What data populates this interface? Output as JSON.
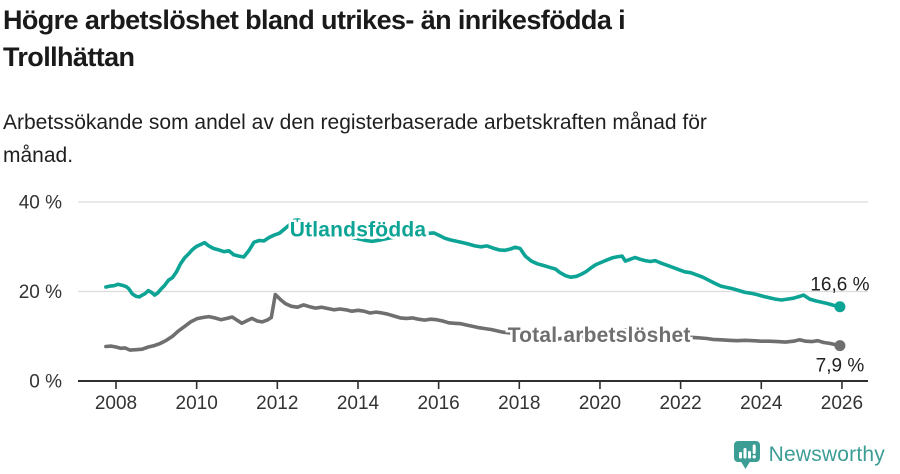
{
  "header": {
    "title_line1": "Högre arbetslöshet bland utrikes- än inrikesfödda i",
    "title_line2": "Trollhättan",
    "subtitle_line1": "Arbetssökande som andel av den registerbaserade arbetskraften månad för",
    "subtitle_line2": "månad."
  },
  "footer": {
    "brand": "Newsworthy",
    "logo_icon": "bar-chart-speech-bubble"
  },
  "colors": {
    "foreign_born_line": "#0da496",
    "total_line": "#6f6f6f",
    "grid": "#dcdcdc",
    "axis": "#2f2f2f",
    "tick_text": "#333333",
    "end_label_text": "#222222",
    "logo_teal": "#3c9d95"
  },
  "chart_data": {
    "type": "line",
    "title": "Högre arbetslöshet bland utrikes- än inrikesfödda i Trollhättan",
    "subtitle": "Arbetssökande som andel av den registerbaserade arbetskraften månad för månad.",
    "xlabel": "",
    "ylabel": "",
    "grid": "horizontal-only",
    "legend_position": "inline-labels",
    "ylim": [
      0,
      42
    ],
    "xlim": [
      2007.6,
      2026.7
    ],
    "yticks": [
      {
        "value": 0,
        "label": "0 %"
      },
      {
        "value": 20,
        "label": "20 %"
      },
      {
        "value": 40,
        "label": "40 %"
      }
    ],
    "xticks": [
      {
        "value": 2008,
        "label": "2008"
      },
      {
        "value": 2010,
        "label": "2010"
      },
      {
        "value": 2012,
        "label": "2012"
      },
      {
        "value": 2014,
        "label": "2014"
      },
      {
        "value": 2016,
        "label": "2016"
      },
      {
        "value": 2018,
        "label": "2018"
      },
      {
        "value": 2020,
        "label": "2020"
      },
      {
        "value": 2022,
        "label": "2022"
      },
      {
        "value": 2024,
        "label": "2024"
      },
      {
        "value": 2026,
        "label": "2026"
      }
    ],
    "annotations": [
      {
        "text": "Utlandsfödda",
        "year": 2014.0,
        "value": 33.9,
        "color": "#0da496"
      },
      {
        "text": "Total arbetslöshet",
        "year": 2019.98,
        "value": 10.3,
        "color": "#6f6f6f"
      }
    ],
    "series": [
      {
        "name": "Utlandsfödda",
        "color": "#0da496",
        "end_value": 16.6,
        "end_label": "16,6 %",
        "end_label_position": "above",
        "points": [
          [
            2007.75,
            21.0
          ],
          [
            2007.85,
            21.2
          ],
          [
            2007.95,
            21.3
          ],
          [
            2008.05,
            21.6
          ],
          [
            2008.15,
            21.4
          ],
          [
            2008.25,
            21.1
          ],
          [
            2008.32,
            20.6
          ],
          [
            2008.4,
            19.5
          ],
          [
            2008.5,
            18.9
          ],
          [
            2008.58,
            18.8
          ],
          [
            2008.65,
            19.2
          ],
          [
            2008.72,
            19.5
          ],
          [
            2008.8,
            20.2
          ],
          [
            2008.88,
            19.8
          ],
          [
            2008.96,
            19.2
          ],
          [
            2009.04,
            19.7
          ],
          [
            2009.12,
            20.6
          ],
          [
            2009.2,
            21.3
          ],
          [
            2009.3,
            22.5
          ],
          [
            2009.4,
            23.1
          ],
          [
            2009.5,
            24.4
          ],
          [
            2009.6,
            26.2
          ],
          [
            2009.7,
            27.5
          ],
          [
            2009.8,
            28.4
          ],
          [
            2009.9,
            29.4
          ],
          [
            2010.0,
            30.1
          ],
          [
            2010.1,
            30.5
          ],
          [
            2010.2,
            30.9
          ],
          [
            2010.3,
            30.2
          ],
          [
            2010.42,
            29.6
          ],
          [
            2010.55,
            29.3
          ],
          [
            2010.68,
            28.9
          ],
          [
            2010.8,
            29.1
          ],
          [
            2010.92,
            28.2
          ],
          [
            2011.05,
            27.9
          ],
          [
            2011.17,
            27.7
          ],
          [
            2011.3,
            29.2
          ],
          [
            2011.42,
            31.0
          ],
          [
            2011.55,
            31.4
          ],
          [
            2011.67,
            31.3
          ],
          [
            2011.8,
            32.1
          ],
          [
            2011.92,
            32.6
          ],
          [
            2012.05,
            33.0
          ],
          [
            2012.17,
            33.9
          ],
          [
            2012.3,
            34.9
          ],
          [
            2012.42,
            35.9
          ],
          [
            2012.52,
            36.0
          ],
          [
            2012.65,
            35.4
          ],
          [
            2012.8,
            35.0
          ],
          [
            2013.0,
            34.5
          ],
          [
            2013.2,
            34.0
          ],
          [
            2013.4,
            33.4
          ],
          [
            2013.6,
            32.8
          ],
          [
            2013.8,
            32.2
          ],
          [
            2014.0,
            31.8
          ],
          [
            2014.2,
            31.4
          ],
          [
            2014.35,
            31.2
          ],
          [
            2014.55,
            31.5
          ],
          [
            2014.75,
            31.9
          ],
          [
            2014.95,
            32.2
          ],
          [
            2015.15,
            32.5
          ],
          [
            2015.35,
            32.7
          ],
          [
            2015.55,
            32.9
          ],
          [
            2015.75,
            33.0
          ],
          [
            2015.88,
            33.1
          ],
          [
            2016.0,
            32.6
          ],
          [
            2016.15,
            31.9
          ],
          [
            2016.3,
            31.5
          ],
          [
            2016.5,
            31.1
          ],
          [
            2016.7,
            30.7
          ],
          [
            2016.9,
            30.2
          ],
          [
            2017.05,
            30.0
          ],
          [
            2017.2,
            30.2
          ],
          [
            2017.35,
            29.7
          ],
          [
            2017.5,
            29.3
          ],
          [
            2017.65,
            29.2
          ],
          [
            2017.78,
            29.5
          ],
          [
            2017.9,
            29.9
          ],
          [
            2018.02,
            29.6
          ],
          [
            2018.15,
            27.9
          ],
          [
            2018.3,
            26.8
          ],
          [
            2018.45,
            26.2
          ],
          [
            2018.6,
            25.8
          ],
          [
            2018.75,
            25.4
          ],
          [
            2018.9,
            25.0
          ],
          [
            2019.0,
            24.3
          ],
          [
            2019.15,
            23.5
          ],
          [
            2019.28,
            23.2
          ],
          [
            2019.42,
            23.4
          ],
          [
            2019.55,
            23.9
          ],
          [
            2019.65,
            24.4
          ],
          [
            2019.78,
            25.3
          ],
          [
            2019.9,
            26.0
          ],
          [
            2020.03,
            26.5
          ],
          [
            2020.16,
            27.0
          ],
          [
            2020.3,
            27.5
          ],
          [
            2020.45,
            27.8
          ],
          [
            2020.55,
            27.9
          ],
          [
            2020.63,
            26.8
          ],
          [
            2020.75,
            27.2
          ],
          [
            2020.87,
            27.6
          ],
          [
            2021.0,
            27.2
          ],
          [
            2021.12,
            26.9
          ],
          [
            2021.25,
            26.7
          ],
          [
            2021.37,
            26.9
          ],
          [
            2021.5,
            26.4
          ],
          [
            2021.65,
            25.9
          ],
          [
            2021.8,
            25.4
          ],
          [
            2021.95,
            24.9
          ],
          [
            2022.1,
            24.4
          ],
          [
            2022.25,
            24.2
          ],
          [
            2022.4,
            23.7
          ],
          [
            2022.55,
            23.2
          ],
          [
            2022.7,
            22.5
          ],
          [
            2022.85,
            21.8
          ],
          [
            2023.0,
            21.2
          ],
          [
            2023.15,
            20.9
          ],
          [
            2023.3,
            20.6
          ],
          [
            2023.45,
            20.2
          ],
          [
            2023.6,
            19.8
          ],
          [
            2023.75,
            19.6
          ],
          [
            2023.9,
            19.3
          ],
          [
            2024.05,
            18.9
          ],
          [
            2024.2,
            18.6
          ],
          [
            2024.35,
            18.3
          ],
          [
            2024.5,
            18.1
          ],
          [
            2024.65,
            18.3
          ],
          [
            2024.8,
            18.5
          ],
          [
            2024.95,
            18.9
          ],
          [
            2025.05,
            19.2
          ],
          [
            2025.2,
            18.3
          ],
          [
            2025.35,
            17.9
          ],
          [
            2025.5,
            17.6
          ],
          [
            2025.65,
            17.3
          ],
          [
            2025.8,
            16.9
          ],
          [
            2025.95,
            16.6
          ]
        ]
      },
      {
        "name": "Total arbetslöshet",
        "color": "#6f6f6f",
        "end_value": 7.9,
        "end_label": "7,9 %",
        "end_label_position": "below",
        "points": [
          [
            2007.75,
            7.7
          ],
          [
            2007.88,
            7.8
          ],
          [
            2008.0,
            7.6
          ],
          [
            2008.12,
            7.3
          ],
          [
            2008.22,
            7.4
          ],
          [
            2008.35,
            6.9
          ],
          [
            2008.5,
            7.0
          ],
          [
            2008.65,
            7.1
          ],
          [
            2008.8,
            7.6
          ],
          [
            2008.95,
            7.9
          ],
          [
            2009.1,
            8.4
          ],
          [
            2009.25,
            9.1
          ],
          [
            2009.4,
            10.0
          ],
          [
            2009.55,
            11.2
          ],
          [
            2009.7,
            12.2
          ],
          [
            2009.85,
            13.2
          ],
          [
            2010.0,
            13.9
          ],
          [
            2010.15,
            14.2
          ],
          [
            2010.3,
            14.4
          ],
          [
            2010.45,
            14.1
          ],
          [
            2010.6,
            13.7
          ],
          [
            2010.75,
            14.0
          ],
          [
            2010.88,
            14.3
          ],
          [
            2011.0,
            13.6
          ],
          [
            2011.12,
            12.9
          ],
          [
            2011.25,
            13.5
          ],
          [
            2011.37,
            14.0
          ],
          [
            2011.5,
            13.4
          ],
          [
            2011.62,
            13.2
          ],
          [
            2011.75,
            13.6
          ],
          [
            2011.85,
            14.2
          ],
          [
            2011.95,
            19.3
          ],
          [
            2012.08,
            18.2
          ],
          [
            2012.2,
            17.3
          ],
          [
            2012.35,
            16.7
          ],
          [
            2012.5,
            16.5
          ],
          [
            2012.65,
            17.0
          ],
          [
            2012.8,
            16.6
          ],
          [
            2012.95,
            16.3
          ],
          [
            2013.1,
            16.5
          ],
          [
            2013.25,
            16.2
          ],
          [
            2013.4,
            15.9
          ],
          [
            2013.55,
            16.1
          ],
          [
            2013.7,
            15.9
          ],
          [
            2013.85,
            15.6
          ],
          [
            2014.0,
            15.8
          ],
          [
            2014.15,
            15.6
          ],
          [
            2014.3,
            15.2
          ],
          [
            2014.45,
            15.4
          ],
          [
            2014.6,
            15.2
          ],
          [
            2014.75,
            14.9
          ],
          [
            2014.9,
            14.5
          ],
          [
            2015.05,
            14.1
          ],
          [
            2015.2,
            14.0
          ],
          [
            2015.35,
            14.1
          ],
          [
            2015.5,
            13.8
          ],
          [
            2015.65,
            13.6
          ],
          [
            2015.8,
            13.8
          ],
          [
            2015.95,
            13.7
          ],
          [
            2016.1,
            13.4
          ],
          [
            2016.25,
            13.0
          ],
          [
            2016.4,
            12.9
          ],
          [
            2016.55,
            12.8
          ],
          [
            2016.7,
            12.5
          ],
          [
            2016.85,
            12.2
          ],
          [
            2017.0,
            11.9
          ],
          [
            2017.15,
            11.7
          ],
          [
            2017.3,
            11.5
          ],
          [
            2017.45,
            11.2
          ],
          [
            2017.6,
            10.9
          ],
          [
            2017.8,
            10.7
          ],
          [
            2018.0,
            10.5
          ],
          [
            2018.2,
            10.3
          ],
          [
            2018.45,
            10.1
          ],
          [
            2018.7,
            9.8
          ],
          [
            2018.95,
            9.4
          ],
          [
            2019.15,
            9.6
          ],
          [
            2019.4,
            9.8
          ],
          [
            2019.65,
            10.0
          ],
          [
            2019.9,
            10.3
          ],
          [
            2020.15,
            10.9
          ],
          [
            2020.4,
            11.3
          ],
          [
            2020.6,
            11.4
          ],
          [
            2020.85,
            11.2
          ],
          [
            2021.1,
            10.9
          ],
          [
            2021.35,
            10.6
          ],
          [
            2021.6,
            10.3
          ],
          [
            2021.85,
            10.0
          ],
          [
            2022.1,
            9.8
          ],
          [
            2022.35,
            9.7
          ],
          [
            2022.5,
            9.6
          ],
          [
            2022.65,
            9.5
          ],
          [
            2022.8,
            9.3
          ],
          [
            2023.0,
            9.2
          ],
          [
            2023.2,
            9.1
          ],
          [
            2023.4,
            9.0
          ],
          [
            2023.6,
            9.1
          ],
          [
            2023.8,
            9.0
          ],
          [
            2024.0,
            8.9
          ],
          [
            2024.2,
            8.9
          ],
          [
            2024.4,
            8.8
          ],
          [
            2024.6,
            8.7
          ],
          [
            2024.8,
            8.9
          ],
          [
            2024.95,
            9.2
          ],
          [
            2025.1,
            8.9
          ],
          [
            2025.25,
            8.8
          ],
          [
            2025.4,
            9.0
          ],
          [
            2025.55,
            8.6
          ],
          [
            2025.7,
            8.4
          ],
          [
            2025.85,
            8.1
          ],
          [
            2025.95,
            7.9
          ]
        ]
      }
    ]
  }
}
